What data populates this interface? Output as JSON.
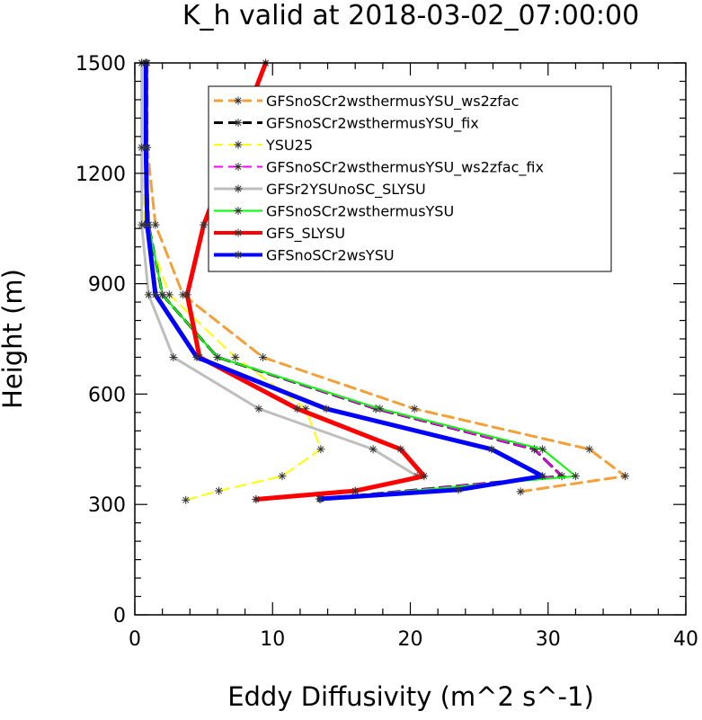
{
  "chart_data": {
    "type": "line",
    "title": "K_h valid at 2018-03-02_07:00:00",
    "xlabel": "Eddy Diffusivity (m^2 s^-1)",
    "ylabel": "Height (m)",
    "xlim": [
      0,
      40
    ],
    "ylim": [
      0,
      1500
    ],
    "x_ticks": [
      0,
      10,
      20,
      30,
      40
    ],
    "y_ticks": [
      0,
      300,
      600,
      900,
      1200,
      1500
    ],
    "x_tick_labels": [
      "0",
      "10",
      "20",
      "30",
      "40"
    ],
    "y_tick_labels": [
      "0",
      "300",
      "600",
      "900",
      "1200",
      "1500"
    ],
    "legend_position": "top-right",
    "series": [
      {
        "name": "GFSnoSCr2wsthermusYSU_ws2zfac",
        "color": "#f4a037",
        "dash": "dashed",
        "width": 3,
        "points": [
          [
            28.0,
            335
          ],
          [
            35.6,
            377
          ],
          [
            33.0,
            450
          ],
          [
            20.3,
            560
          ],
          [
            9.3,
            700
          ],
          [
            3.5,
            870
          ],
          [
            1.5,
            1060
          ],
          [
            0.9,
            1270
          ],
          [
            0.9,
            1500
          ]
        ]
      },
      {
        "name": "GFSnoSCr2wsthermusYSU_fix",
        "color": "#000000",
        "dash": "dashed",
        "width": 3,
        "points": [
          [
            13.5,
            315
          ],
          [
            31.0,
            377
          ],
          [
            29.0,
            450
          ],
          [
            17.5,
            560
          ],
          [
            6.0,
            700
          ],
          [
            2.0,
            870
          ],
          [
            1.0,
            1060
          ],
          [
            0.8,
            1270
          ],
          [
            0.8,
            1500
          ]
        ]
      },
      {
        "name": "YSU25",
        "color": "#ffff00",
        "dash": "dashed",
        "width": 2,
        "points": [
          [
            3.7,
            312
          ],
          [
            6.1,
            337
          ],
          [
            10.7,
            377
          ],
          [
            13.5,
            450
          ],
          [
            12.4,
            560
          ],
          [
            7.3,
            700
          ],
          [
            2.5,
            870
          ],
          [
            0.7,
            1060
          ],
          [
            0.5,
            1270
          ],
          [
            0.5,
            1500
          ]
        ]
      },
      {
        "name": "GFSnoSCr2wsthermusYSU_ws2zfac_fix",
        "color": "#ff00ff",
        "dash": "dashed",
        "width": 2,
        "points": [
          [
            13.5,
            315
          ],
          [
            31.0,
            377
          ],
          [
            29.0,
            450
          ],
          [
            17.5,
            560
          ],
          [
            6.0,
            700
          ],
          [
            2.0,
            870
          ],
          [
            1.0,
            1060
          ],
          [
            0.8,
            1270
          ],
          [
            0.8,
            1500
          ]
        ]
      },
      {
        "name": "GFSr2YSUnoSC_SLYSU",
        "color": "#bebebe",
        "dash": "solid",
        "width": 3,
        "points": [
          [
            8.8,
            314
          ],
          [
            16.0,
            335
          ],
          [
            20.5,
            377
          ],
          [
            17.3,
            450
          ],
          [
            9.0,
            560
          ],
          [
            2.8,
            700
          ],
          [
            1.0,
            870
          ],
          [
            0.5,
            1060
          ],
          [
            0.5,
            1270
          ],
          [
            0.5,
            1500
          ]
        ]
      },
      {
        "name": "GFSnoSCr2wsthermusYSU",
        "color": "#00ff00",
        "dash": "solid",
        "width": 2,
        "points": [
          [
            13.5,
            315
          ],
          [
            32.0,
            377
          ],
          [
            29.6,
            450
          ],
          [
            17.8,
            560
          ],
          [
            6.0,
            700
          ],
          [
            2.0,
            870
          ],
          [
            1.0,
            1060
          ],
          [
            0.8,
            1270
          ],
          [
            0.8,
            1500
          ]
        ]
      },
      {
        "name": "GFS_SLYSU",
        "color": "#ff0000",
        "dash": "solid",
        "width": 5,
        "points": [
          [
            8.8,
            314
          ],
          [
            16.0,
            337
          ],
          [
            21.0,
            377
          ],
          [
            19.3,
            450
          ],
          [
            11.8,
            560
          ],
          [
            4.7,
            700
          ],
          [
            3.8,
            870
          ],
          [
            5.0,
            1060
          ],
          [
            9.5,
            1500
          ]
        ]
      },
      {
        "name": "GFSnoSCr2wsYSU",
        "color": "#0000ff",
        "dash": "solid",
        "width": 5,
        "points": [
          [
            13.4,
            315
          ],
          [
            23.5,
            340
          ],
          [
            29.6,
            377
          ],
          [
            25.9,
            450
          ],
          [
            13.9,
            560
          ],
          [
            4.5,
            700
          ],
          [
            1.5,
            870
          ],
          [
            0.9,
            1060
          ],
          [
            0.8,
            1270
          ],
          [
            0.8,
            1500
          ]
        ]
      }
    ]
  }
}
